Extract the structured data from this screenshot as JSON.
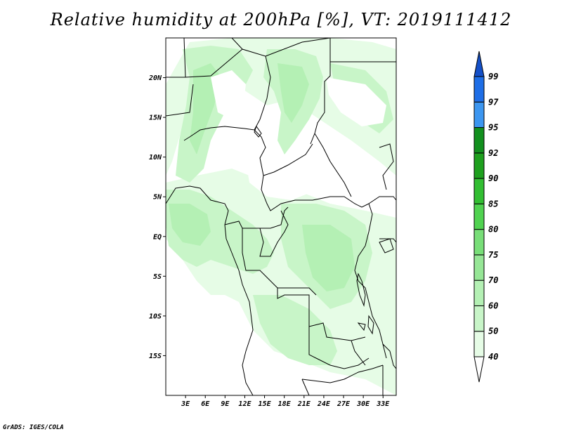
{
  "title": "Relative humidity at 200hPa [%], VT: 2019111412",
  "credit": "GrADS: IGES/COLA",
  "map": {
    "lon_range": [
      0,
      35
    ],
    "lat_range": [
      -20,
      25
    ],
    "x_ticks": [
      "3E",
      "6E",
      "9E",
      "12E",
      "15E",
      "18E",
      "21E",
      "24E",
      "27E",
      "30E",
      "33E"
    ],
    "y_ticks": [
      "20N",
      "15N",
      "10N",
      "5N",
      "EQ",
      "5S",
      "10S",
      "15S"
    ]
  },
  "colorbar": {
    "levels": [
      "40",
      "50",
      "60",
      "70",
      "75",
      "80",
      "85",
      "90",
      "92",
      "95",
      "97",
      "99"
    ],
    "colors": [
      "#ffffff",
      "#e6fce6",
      "#c8f5c8",
      "#b4f0b4",
      "#96e696",
      "#78de78",
      "#50d250",
      "#32be32",
      "#1ea01e",
      "#12901e",
      "#3c96f0",
      "#1e6ee6",
      "#1450c8"
    ]
  }
}
